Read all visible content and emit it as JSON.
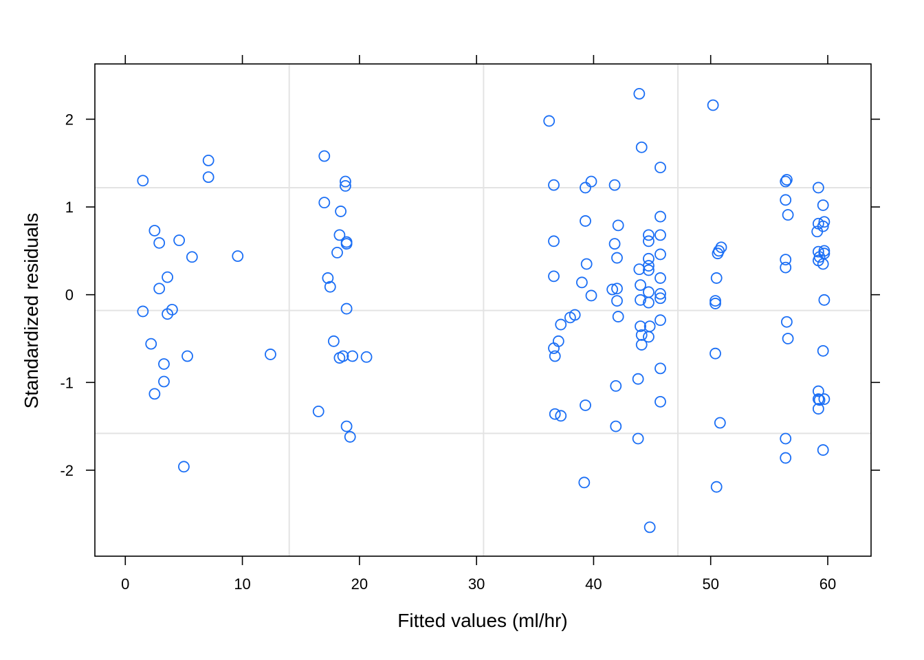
{
  "chart_data": {
    "type": "scatter",
    "title": "",
    "xlabel": "Fitted values (ml/hr)",
    "ylabel": "Standardized residuals",
    "xlim": [
      -2.6,
      63.7
    ],
    "ylim": [
      -2.98,
      2.63
    ],
    "x_ticks": [
      0,
      10,
      20,
      30,
      40,
      50,
      60
    ],
    "y_ticks": [
      -2,
      -1,
      0,
      1,
      2
    ],
    "x_tick_labels": [
      "0",
      "10",
      "20",
      "30",
      "40",
      "50",
      "60"
    ],
    "y_tick_labels": [
      "-2",
      "-1",
      "0",
      "1",
      "2"
    ],
    "ref_lines_x": [
      14.0,
      30.6,
      47.2
    ],
    "ref_lines_y": [
      -1.58,
      -0.18,
      1.22
    ],
    "grid": false,
    "colors": {
      "points": "#1a6ef5",
      "ref_lines": "#e3e3e3",
      "axis": "#000000"
    },
    "series": [
      {
        "points": [
          [
            1.5,
            1.3
          ],
          [
            1.5,
            -0.19
          ],
          [
            2.2,
            -0.56
          ],
          [
            2.5,
            0.73
          ],
          [
            2.5,
            -1.13
          ],
          [
            2.9,
            0.59
          ],
          [
            2.9,
            0.07
          ],
          [
            3.3,
            -0.79
          ],
          [
            3.3,
            -0.99
          ],
          [
            3.6,
            0.2
          ],
          [
            3.6,
            -0.22
          ],
          [
            4.0,
            -0.17
          ],
          [
            4.6,
            0.62
          ],
          [
            5.0,
            -1.96
          ],
          [
            5.3,
            -0.7
          ],
          [
            5.7,
            0.43
          ],
          [
            7.1,
            1.53
          ],
          [
            7.1,
            1.34
          ],
          [
            9.6,
            0.44
          ],
          [
            12.4,
            -0.68
          ],
          [
            16.5,
            -1.33
          ],
          [
            17.0,
            1.58
          ],
          [
            17.0,
            1.05
          ],
          [
            17.3,
            0.19
          ],
          [
            17.5,
            0.09
          ],
          [
            17.8,
            -0.53
          ],
          [
            18.1,
            0.48
          ],
          [
            18.3,
            0.68
          ],
          [
            18.3,
            -0.72
          ],
          [
            18.4,
            0.95
          ],
          [
            18.6,
            -0.7
          ],
          [
            18.8,
            1.29
          ],
          [
            18.8,
            1.24
          ],
          [
            18.9,
            0.6
          ],
          [
            18.9,
            0.58
          ],
          [
            18.9,
            -0.16
          ],
          [
            18.9,
            -1.5
          ],
          [
            19.2,
            -1.62
          ],
          [
            19.4,
            -0.7
          ],
          [
            20.6,
            -0.71
          ],
          [
            36.2,
            1.98
          ],
          [
            36.6,
            1.25
          ],
          [
            36.6,
            0.61
          ],
          [
            36.6,
            0.21
          ],
          [
            36.6,
            -0.61
          ],
          [
            36.7,
            -0.7
          ],
          [
            36.7,
            -1.36
          ],
          [
            37.0,
            -0.53
          ],
          [
            37.2,
            -0.34
          ],
          [
            37.2,
            -1.38
          ],
          [
            38.0,
            -0.26
          ],
          [
            38.4,
            -0.23
          ],
          [
            39.0,
            0.14
          ],
          [
            39.2,
            -2.14
          ],
          [
            39.3,
            1.22
          ],
          [
            39.3,
            0.84
          ],
          [
            39.3,
            -1.26
          ],
          [
            39.4,
            0.35
          ],
          [
            39.8,
            1.29
          ],
          [
            39.8,
            -0.01
          ],
          [
            41.6,
            0.06
          ],
          [
            41.8,
            1.25
          ],
          [
            41.8,
            0.58
          ],
          [
            41.9,
            -1.04
          ],
          [
            41.9,
            -1.5
          ],
          [
            42.0,
            0.42
          ],
          [
            42.0,
            0.07
          ],
          [
            42.0,
            -0.07
          ],
          [
            42.1,
            0.79
          ],
          [
            42.1,
            -0.25
          ],
          [
            43.8,
            -0.96
          ],
          [
            43.8,
            -1.64
          ],
          [
            43.9,
            2.29
          ],
          [
            43.9,
            0.29
          ],
          [
            44.0,
            0.11
          ],
          [
            44.0,
            -0.06
          ],
          [
            44.0,
            -0.36
          ],
          [
            44.1,
            1.68
          ],
          [
            44.1,
            -0.46
          ],
          [
            44.1,
            -0.57
          ],
          [
            44.7,
            0.68
          ],
          [
            44.7,
            0.61
          ],
          [
            44.7,
            0.41
          ],
          [
            44.7,
            0.33
          ],
          [
            44.7,
            0.28
          ],
          [
            44.7,
            0.03
          ],
          [
            44.7,
            -0.09
          ],
          [
            44.7,
            -0.48
          ],
          [
            44.8,
            -0.36
          ],
          [
            44.8,
            -2.65
          ],
          [
            45.7,
            1.45
          ],
          [
            45.7,
            0.89
          ],
          [
            45.7,
            0.68
          ],
          [
            45.7,
            0.46
          ],
          [
            45.7,
            0.19
          ],
          [
            45.7,
            0.01
          ],
          [
            45.7,
            -0.04
          ],
          [
            45.7,
            -0.29
          ],
          [
            45.7,
            -0.84
          ],
          [
            45.7,
            -1.22
          ],
          [
            50.2,
            2.16
          ],
          [
            50.4,
            -0.07
          ],
          [
            50.4,
            -0.1
          ],
          [
            50.4,
            -0.67
          ],
          [
            50.5,
            0.19
          ],
          [
            50.5,
            -2.19
          ],
          [
            50.6,
            0.47
          ],
          [
            50.7,
            0.5
          ],
          [
            50.8,
            -1.46
          ],
          [
            50.9,
            0.54
          ],
          [
            56.4,
            1.29
          ],
          [
            56.4,
            1.08
          ],
          [
            56.4,
            0.4
          ],
          [
            56.4,
            0.31
          ],
          [
            56.4,
            -1.64
          ],
          [
            56.4,
            -1.86
          ],
          [
            56.5,
            1.31
          ],
          [
            56.5,
            -0.31
          ],
          [
            56.6,
            0.91
          ],
          [
            56.6,
            -0.5
          ],
          [
            59.1,
            0.72
          ],
          [
            59.2,
            1.22
          ],
          [
            59.2,
            0.81
          ],
          [
            59.2,
            0.49
          ],
          [
            59.2,
            0.39
          ],
          [
            59.2,
            -1.1
          ],
          [
            59.2,
            -1.19
          ],
          [
            59.2,
            -1.3
          ],
          [
            59.3,
            0.43
          ],
          [
            59.3,
            -1.2
          ],
          [
            59.6,
            1.02
          ],
          [
            59.6,
            0.78
          ],
          [
            59.6,
            0.35
          ],
          [
            59.6,
            -0.64
          ],
          [
            59.6,
            -1.77
          ],
          [
            59.7,
            0.83
          ],
          [
            59.7,
            0.5
          ],
          [
            59.7,
            0.47
          ],
          [
            59.7,
            -0.06
          ],
          [
            59.7,
            -1.19
          ]
        ]
      }
    ]
  }
}
